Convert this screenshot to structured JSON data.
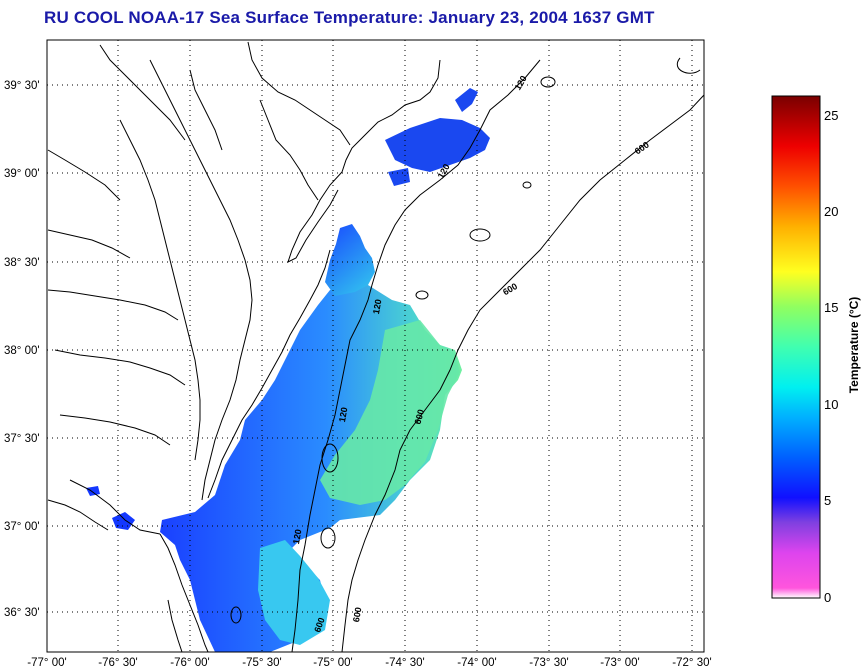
{
  "title": "RU COOL  NOAA-17  Sea Surface Temperature:  January 23, 2004 1637 GMT",
  "lat_labels": [
    "39° 30'",
    "39° 00'",
    "38° 30'",
    "38° 00'",
    "37° 30'",
    "37° 00'",
    "36° 30'"
  ],
  "lon_labels": [
    "-77° 00'",
    "-76° 30'",
    "-76° 00'",
    "-75° 30'",
    "-75° 00'",
    "-74° 30'",
    "-74° 00'",
    "-73° 30'",
    "-73° 00'",
    "-72° 30'"
  ],
  "contour_labels": [
    "120",
    "600",
    "120",
    "600",
    "120",
    "600",
    "120",
    "600",
    "120",
    "600"
  ],
  "colorbar": {
    "label": "Temperature (°C)",
    "ticks": [
      "25",
      "20",
      "15",
      "10",
      "5",
      "0"
    ],
    "min": 0,
    "max": 26
  },
  "colors": {
    "title": "#1a1aa8",
    "sst_cold": "#1a4cff",
    "sst_mid": "#33a0ff",
    "sst_warm": "#66e8a0"
  }
}
